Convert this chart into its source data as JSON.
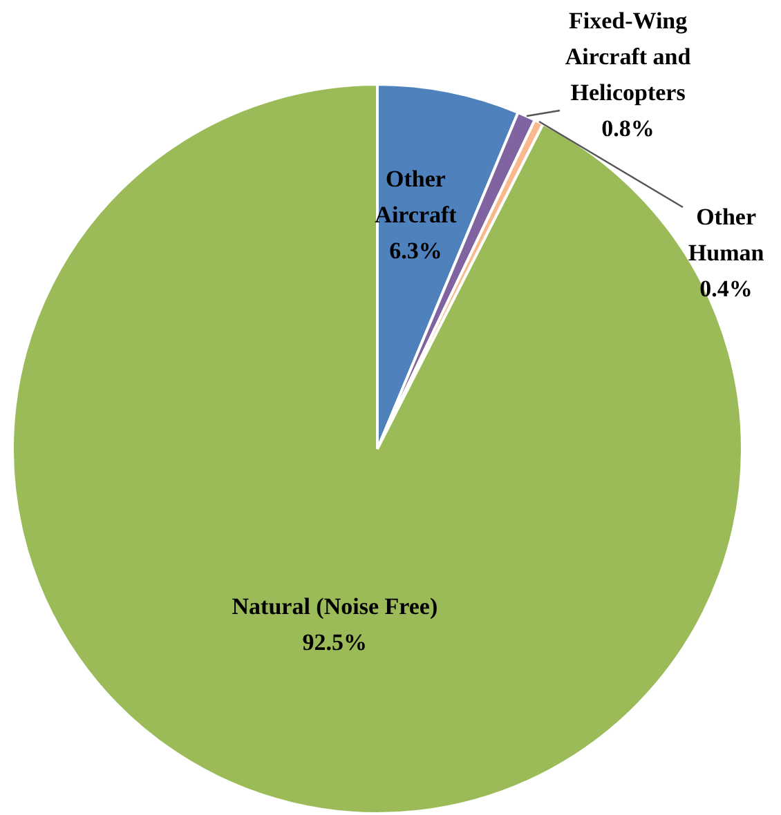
{
  "chart_data": {
    "type": "pie",
    "categories": [
      "Other Aircraft",
      "Fixed-Wing Aircraft and Helicopters",
      "Other Human",
      "Natural (Noise Free)"
    ],
    "values": [
      6.3,
      0.8,
      0.4,
      92.5
    ],
    "colors": [
      "#4f81bd",
      "#8064a2",
      "#f9b98c",
      "#9bbb59"
    ],
    "value_labels": [
      "6.3%",
      "0.8%",
      "0.4%",
      "92.5%"
    ],
    "legend": false
  }
}
